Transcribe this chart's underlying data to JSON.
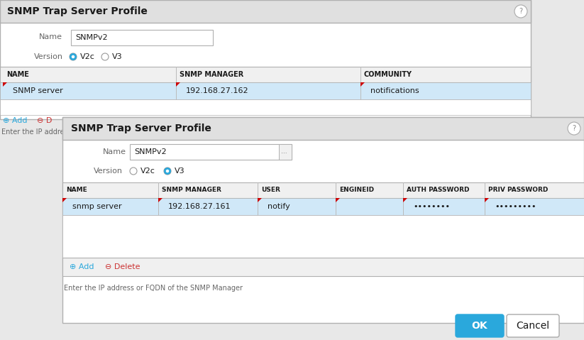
{
  "bg_color": "#e8e8e8",
  "white": "#ffffff",
  "header_bg": "#e0e0e0",
  "border_color": "#b0b0b0",
  "table_header_bg": "#f0f0f0",
  "selected_row_bg": "#d0e8f8",
  "blue_btn": "#2aa8dc",
  "dark_text": "#1a1a1a",
  "gray_text": "#666666",
  "red_mark": "#cc0000",
  "radio_blue": "#2aa8dc",
  "panel_shadow": "#c0c0c0",
  "panel1_title": "SNMP Trap Server Profile",
  "p1_name_label": "Name",
  "p1_name_value": "SNMPv2",
  "p1_version_label": "Version",
  "p1_v2c_label": "V2c",
  "p1_v3_label": "V3",
  "p1_col_headers": [
    "NAME",
    "SNMP MANAGER",
    "COMMUNITY"
  ],
  "p1_row1": [
    "SNMP server",
    "192.168.27.162",
    "notifications"
  ],
  "p1_add_label": "⊕ Add",
  "p1_del_label": "⊖ D",
  "p1_hint": "Enter the IP addres",
  "panel2_title": "SNMP Trap Server Profile",
  "p2_name_label": "Name",
  "p2_name_value": "SNMPv2",
  "p2_version_label": "Version",
  "p2_v2c_label": "V2c",
  "p2_v3_label": "V3",
  "p2_col_headers": [
    "NAME",
    "SNMP MANAGER",
    "USER",
    "ENGINEID",
    "AUTH PASSWORD",
    "PRIV PASSWORD"
  ],
  "p2_row1": [
    "snmp server",
    "192.168.27.161",
    "notify",
    "",
    "••••••••",
    "•••••••••"
  ],
  "p2_add_label": "⊕ Add",
  "p2_del_label": "⊖ Delete",
  "p2_hint": "Enter the IP address or FQDN of the SNMP Manager",
  "ok_label": "OK",
  "cancel_label": "Cancel"
}
